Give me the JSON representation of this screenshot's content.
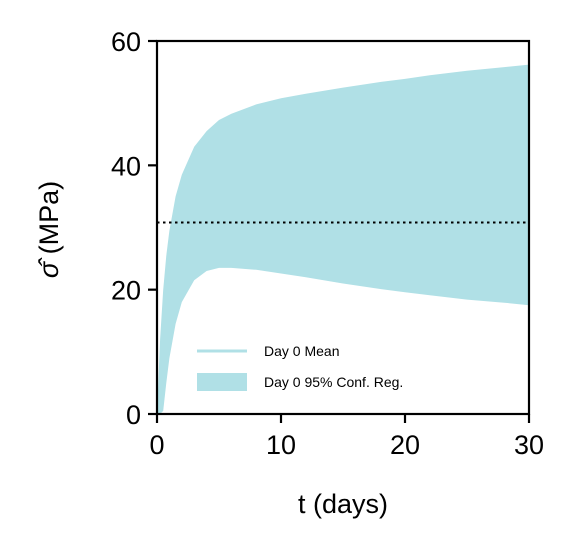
{
  "chart_data": {
    "type": "area",
    "xlabel": "t (days)",
    "ylabel_prefix": "σ̂",
    "ylabel_unit": " (MPa)",
    "xlim": [
      0,
      30
    ],
    "ylim": [
      0,
      60
    ],
    "xticks": [
      0,
      10,
      20,
      30
    ],
    "yticks": [
      0,
      20,
      40,
      60
    ],
    "grid": false,
    "legend_position": "lower-right",
    "series": [
      {
        "name": "Day 0 Mean",
        "kind": "line",
        "color": "#b0e0e6",
        "x": [],
        "y": []
      },
      {
        "name": "Day 0 95% Conf. Reg.",
        "kind": "band",
        "color": "#b0e0e6",
        "x": [
          0,
          0.25,
          0.5,
          0.75,
          1,
          1.5,
          2,
          3,
          4,
          5,
          6,
          8,
          10,
          12,
          15,
          18,
          20,
          22,
          25,
          28,
          30
        ],
        "upper": [
          0,
          12,
          20,
          25.5,
          29.5,
          35,
          38.5,
          43,
          45.5,
          47.3,
          48.3,
          49.8,
          50.8,
          51.5,
          52.5,
          53.4,
          53.9,
          54.5,
          55.2,
          55.8,
          56.2
        ],
        "lower": [
          0,
          0,
          0.5,
          5,
          9,
          14.5,
          18,
          21.5,
          23,
          23.5,
          23.5,
          23.2,
          22.6,
          22,
          21,
          20.1,
          19.6,
          19.1,
          18.4,
          17.9,
          17.5
        ]
      }
    ],
    "reference_line": {
      "y": 30.8,
      "style": "dotted",
      "color": "#000000"
    }
  }
}
